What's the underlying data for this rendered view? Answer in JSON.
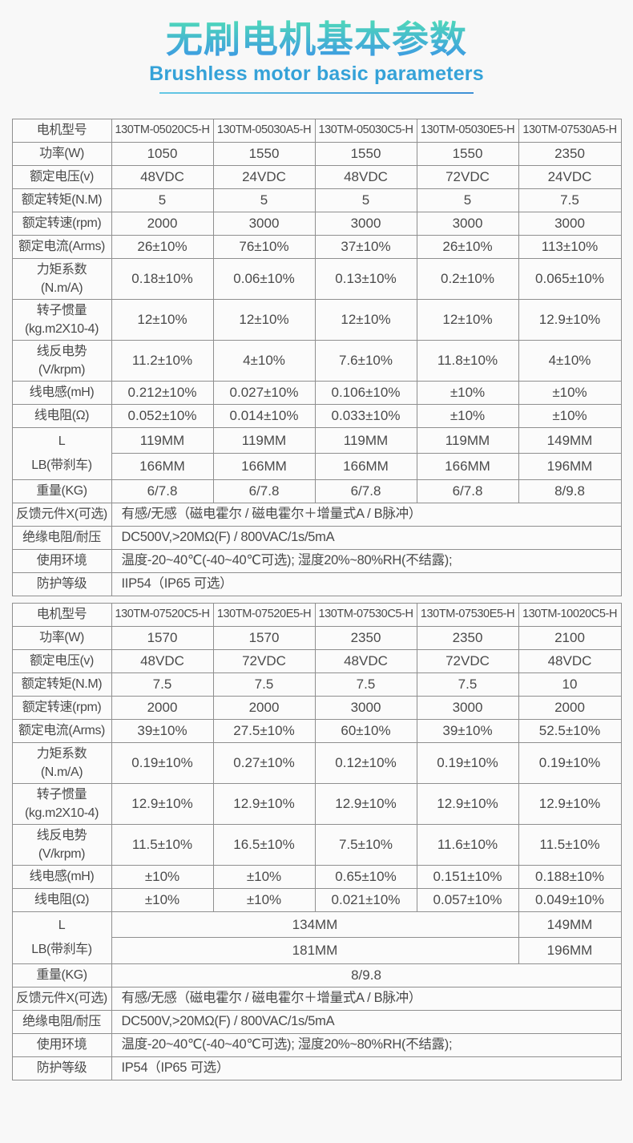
{
  "header": {
    "title": "无刷电机基本参数",
    "subtitle": "Brushless motor basic parameters"
  },
  "colors": {
    "title_gradient_top": "#4ed4bc",
    "title_gradient_bottom": "#3d9ce2",
    "subtitle": "#35a2d8",
    "table_border": "#8f8f8f",
    "text": "#4a4a4a",
    "page_background": "#f8f8f8"
  },
  "tables": [
    {
      "rows": [
        {
          "label": "电机型号",
          "cells": [
            {
              "t": "130TM-05020C5-H"
            },
            {
              "t": "130TM-05030A5-H"
            },
            {
              "t": "130TM-05030C5-H"
            },
            {
              "t": "130TM-05030E5-H"
            },
            {
              "t": "130TM-07530A5-H"
            }
          ]
        },
        {
          "label": "功率(W)",
          "cells": [
            {
              "t": "1050"
            },
            {
              "t": "1550"
            },
            {
              "t": "1550"
            },
            {
              "t": "1550"
            },
            {
              "t": "2350"
            }
          ]
        },
        {
          "label": "额定电压(v)",
          "cells": [
            {
              "t": "48VDC"
            },
            {
              "t": "24VDC"
            },
            {
              "t": "48VDC"
            },
            {
              "t": "72VDC"
            },
            {
              "t": "24VDC"
            }
          ]
        },
        {
          "label": "额定转矩(N.M)",
          "cells": [
            {
              "t": "5"
            },
            {
              "t": "5"
            },
            {
              "t": "5"
            },
            {
              "t": "5"
            },
            {
              "t": "7.5"
            }
          ]
        },
        {
          "label": "额定转速(rpm)",
          "cells": [
            {
              "t": "2000"
            },
            {
              "t": "3000"
            },
            {
              "t": "3000"
            },
            {
              "t": "3000"
            },
            {
              "t": "3000"
            }
          ]
        },
        {
          "label": "额定电流(Arms)",
          "cells": [
            {
              "t": "26±10%"
            },
            {
              "t": "76±10%"
            },
            {
              "t": "37±10%"
            },
            {
              "t": "26±10%"
            },
            {
              "t": "113±10%"
            }
          ]
        },
        {
          "label_lines": [
            "力矩系数",
            "(N.m/A)"
          ],
          "cells": [
            {
              "t": "0.18±10%"
            },
            {
              "t": "0.06±10%"
            },
            {
              "t": "0.13±10%"
            },
            {
              "t": "0.2±10%"
            },
            {
              "t": "0.065±10%"
            }
          ]
        },
        {
          "label_lines": [
            "转子惯量",
            "(kg.m2X10-4)"
          ],
          "cells": [
            {
              "t": "12±10%"
            },
            {
              "t": "12±10%"
            },
            {
              "t": "12±10%"
            },
            {
              "t": "12±10%"
            },
            {
              "t": "12.9±10%"
            }
          ]
        },
        {
          "label_lines": [
            "线反电势",
            "(V/krpm)"
          ],
          "cells": [
            {
              "t": "11.2±10%"
            },
            {
              "t": "4±10%"
            },
            {
              "t": "7.6±10%"
            },
            {
              "t": "11.8±10%"
            },
            {
              "t": "4±10%"
            }
          ]
        },
        {
          "label": "线电感(mH)",
          "cells": [
            {
              "t": "0.212±10%"
            },
            {
              "t": "0.027±10%"
            },
            {
              "t": "0.106±10%"
            },
            {
              "t": "±10%"
            },
            {
              "t": "±10%"
            }
          ]
        },
        {
          "label": "线电阻(Ω)",
          "cells": [
            {
              "t": "0.052±10%"
            },
            {
              "t": "0.014±10%"
            },
            {
              "t": "0.033±10%"
            },
            {
              "t": "±10%"
            },
            {
              "t": "±10%"
            }
          ]
        },
        {
          "label_lines": [
            "L",
            "LB(带刹车)"
          ],
          "label_rowspan": 2,
          "cells": [
            {
              "t": "119MM"
            },
            {
              "t": "119MM"
            },
            {
              "t": "119MM"
            },
            {
              "t": "119MM"
            },
            {
              "t": "149MM"
            }
          ]
        },
        {
          "skip_label": true,
          "cells": [
            {
              "t": "166MM"
            },
            {
              "t": "166MM"
            },
            {
              "t": "166MM"
            },
            {
              "t": "166MM"
            },
            {
              "t": "196MM"
            }
          ]
        },
        {
          "label": "重量(KG)",
          "cells": [
            {
              "t": "6/7.8"
            },
            {
              "t": "6/7.8"
            },
            {
              "t": "6/7.8"
            },
            {
              "t": "6/7.8"
            },
            {
              "t": "8/9.8"
            }
          ]
        },
        {
          "label": "反馈元件X(可选)",
          "cells": [
            {
              "t": "有感/无感（磁电霍尔 / 磁电霍尔＋增量式A / B脉冲）",
              "s": 5,
              "a": "l"
            }
          ]
        },
        {
          "label": "绝缘电阻/耐压",
          "cells": [
            {
              "t": "DC500V,>20MΩ(F) / 800VAC/1s/5mA",
              "s": 5,
              "a": "l"
            }
          ]
        },
        {
          "label": "使用环境",
          "cells": [
            {
              "t": "温度-20~40℃(-40~40℃可选); 湿度20%~80%RH(不结露);",
              "s": 5,
              "a": "l"
            }
          ]
        },
        {
          "label": "防护等级",
          "cells": [
            {
              "t": "IIP54（IP65 可选）",
              "s": 5,
              "a": "l"
            }
          ]
        }
      ]
    },
    {
      "rows": [
        {
          "label": "电机型号",
          "cells": [
            {
              "t": "130TM-07520C5-H"
            },
            {
              "t": "130TM-07520E5-H"
            },
            {
              "t": "130TM-07530C5-H"
            },
            {
              "t": "130TM-07530E5-H"
            },
            {
              "t": "130TM-10020C5-H"
            }
          ]
        },
        {
          "label": "功率(W)",
          "cells": [
            {
              "t": "1570"
            },
            {
              "t": "1570"
            },
            {
              "t": "2350"
            },
            {
              "t": "2350"
            },
            {
              "t": "2100"
            }
          ]
        },
        {
          "label": "额定电压(v)",
          "cells": [
            {
              "t": "48VDC"
            },
            {
              "t": "72VDC"
            },
            {
              "t": "48VDC"
            },
            {
              "t": "72VDC"
            },
            {
              "t": "48VDC"
            }
          ]
        },
        {
          "label": "额定转矩(N.M)",
          "cells": [
            {
              "t": "7.5"
            },
            {
              "t": "7.5"
            },
            {
              "t": "7.5"
            },
            {
              "t": "7.5"
            },
            {
              "t": "10"
            }
          ]
        },
        {
          "label": "额定转速(rpm)",
          "cells": [
            {
              "t": "2000"
            },
            {
              "t": "2000"
            },
            {
              "t": "3000"
            },
            {
              "t": "3000"
            },
            {
              "t": "2000"
            }
          ]
        },
        {
          "label": "额定电流(Arms)",
          "cells": [
            {
              "t": "39±10%"
            },
            {
              "t": "27.5±10%"
            },
            {
              "t": "60±10%"
            },
            {
              "t": "39±10%"
            },
            {
              "t": "52.5±10%"
            }
          ]
        },
        {
          "label_lines": [
            "力矩系数",
            "(N.m/A)"
          ],
          "cells": [
            {
              "t": "0.19±10%"
            },
            {
              "t": "0.27±10%"
            },
            {
              "t": "0.12±10%"
            },
            {
              "t": "0.19±10%"
            },
            {
              "t": "0.19±10%"
            }
          ]
        },
        {
          "label_lines": [
            "转子惯量",
            "(kg.m2X10-4)"
          ],
          "cells": [
            {
              "t": "12.9±10%"
            },
            {
              "t": "12.9±10%"
            },
            {
              "t": "12.9±10%"
            },
            {
              "t": "12.9±10%"
            },
            {
              "t": "12.9±10%"
            }
          ]
        },
        {
          "label_lines": [
            "线反电势",
            "(V/krpm)"
          ],
          "cells": [
            {
              "t": "11.5±10%"
            },
            {
              "t": "16.5±10%"
            },
            {
              "t": "7.5±10%"
            },
            {
              "t": "11.6±10%"
            },
            {
              "t": "11.5±10%"
            }
          ]
        },
        {
          "label": "线电感(mH)",
          "cells": [
            {
              "t": "±10%"
            },
            {
              "t": "±10%"
            },
            {
              "t": "0.65±10%"
            },
            {
              "t": "0.151±10%"
            },
            {
              "t": "0.188±10%"
            }
          ]
        },
        {
          "label": "线电阻(Ω)",
          "cells": [
            {
              "t": "±10%"
            },
            {
              "t": "±10%"
            },
            {
              "t": "0.021±10%"
            },
            {
              "t": "0.057±10%"
            },
            {
              "t": "0.049±10%"
            }
          ]
        },
        {
          "label_lines": [
            "L",
            "LB(带刹车)"
          ],
          "label_rowspan": 2,
          "cells": [
            {
              "t": "134MM",
              "s": 4
            },
            {
              "t": "149MM"
            }
          ]
        },
        {
          "skip_label": true,
          "cells": [
            {
              "t": "181MM",
              "s": 4
            },
            {
              "t": "196MM"
            }
          ]
        },
        {
          "label": "重量(KG)",
          "cells": [
            {
              "t": "8/9.8",
              "s": 5
            }
          ]
        },
        {
          "label": "反馈元件X(可选)",
          "cells": [
            {
              "t": "有感/无感（磁电霍尔 / 磁电霍尔＋增量式A / B脉冲）",
              "s": 5,
              "a": "l"
            }
          ]
        },
        {
          "label": "绝缘电阻/耐压",
          "cells": [
            {
              "t": "DC500V,>20MΩ(F) / 800VAC/1s/5mA",
              "s": 5,
              "a": "l"
            }
          ]
        },
        {
          "label": "使用环境",
          "cells": [
            {
              "t": "温度-20~40℃(-40~40℃可选); 湿度20%~80%RH(不结露);",
              "s": 5,
              "a": "l"
            }
          ]
        },
        {
          "label": "防护等级",
          "cells": [
            {
              "t": "IP54（IP65 可选）",
              "s": 5,
              "a": "l"
            }
          ]
        }
      ]
    }
  ]
}
